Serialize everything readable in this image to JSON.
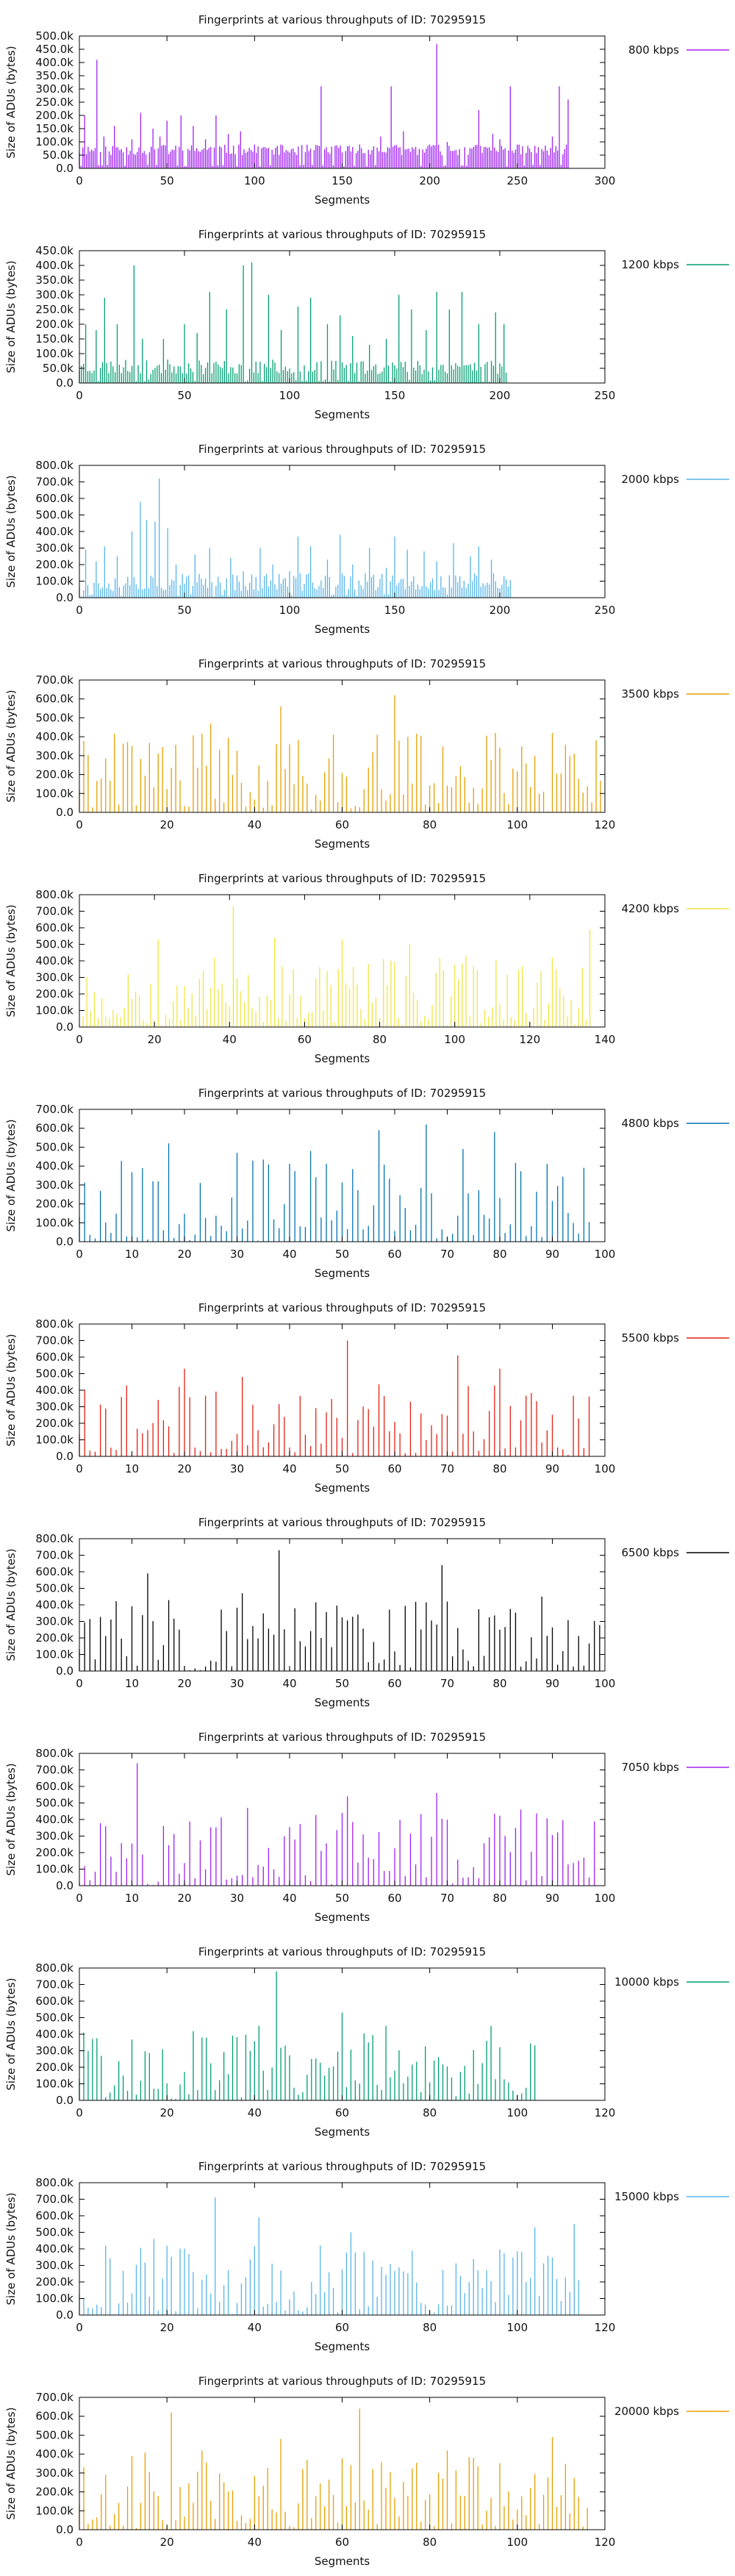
{
  "ylabel": "Size of ADUs (bytes)",
  "xlabel": "Segments",
  "chart_data": [
    {
      "type": "bar",
      "title": "Fingerprints at various throughputs of ID: 70295915",
      "legend": "800 kbps",
      "color": "#a020f0",
      "xlim": [
        0,
        300
      ],
      "ylim": [
        0,
        500000
      ],
      "xticks": [
        "0",
        "50",
        "100",
        "150",
        "200",
        "250",
        "300"
      ],
      "yticks": [
        "0.0",
        "50.0k",
        "100.0k",
        "150.0k",
        "200.0k",
        "250.0k",
        "300.0k",
        "350.0k",
        "400.0k",
        "450.0k",
        "500.0k"
      ],
      "count": 280,
      "peaks": [
        [
          3,
          200000
        ],
        [
          10,
          410000
        ],
        [
          14,
          120000
        ],
        [
          20,
          160000
        ],
        [
          30,
          110000
        ],
        [
          35,
          210000
        ],
        [
          42,
          150000
        ],
        [
          46,
          120000
        ],
        [
          50,
          180000
        ],
        [
          58,
          200000
        ],
        [
          65,
          160000
        ],
        [
          72,
          110000
        ],
        [
          78,
          200000
        ],
        [
          85,
          130000
        ],
        [
          92,
          140000
        ],
        [
          100,
          90000
        ],
        [
          105,
          80000
        ],
        [
          110,
          70000
        ],
        [
          120,
          60000
        ],
        [
          138,
          310000
        ],
        [
          150,
          60000
        ],
        [
          160,
          90000
        ],
        [
          165,
          70000
        ],
        [
          172,
          120000
        ],
        [
          178,
          310000
        ],
        [
          185,
          140000
        ],
        [
          190,
          80000
        ],
        [
          200,
          90000
        ],
        [
          204,
          470000
        ],
        [
          210,
          100000
        ],
        [
          220,
          80000
        ],
        [
          228,
          220000
        ],
        [
          236,
          130000
        ],
        [
          240,
          110000
        ],
        [
          246,
          310000
        ],
        [
          250,
          90000
        ],
        [
          262,
          80000
        ],
        [
          270,
          120000
        ],
        [
          274,
          310000
        ],
        [
          279,
          260000
        ]
      ],
      "base": [
        50000,
        90000
      ],
      "seed": 11
    },
    {
      "type": "bar",
      "title": "Fingerprints at various throughputs of ID: 70295915",
      "legend": "1200 kbps",
      "color": "#009e73",
      "xlim": [
        0,
        250
      ],
      "ylim": [
        0,
        450000
      ],
      "xticks": [
        "0",
        "50",
        "100",
        "150",
        "200",
        "250"
      ],
      "yticks": [
        "0.0",
        "50.0k",
        "100.0k",
        "150.0k",
        "200.0k",
        "250.0k",
        "300.0k",
        "350.0k",
        "400.0k",
        "450.0k"
      ],
      "count": 204,
      "peaks": [
        [
          3,
          200000
        ],
        [
          8,
          180000
        ],
        [
          12,
          290000
        ],
        [
          18,
          200000
        ],
        [
          26,
          400000
        ],
        [
          30,
          150000
        ],
        [
          40,
          150000
        ],
        [
          50,
          200000
        ],
        [
          56,
          170000
        ],
        [
          62,
          310000
        ],
        [
          70,
          250000
        ],
        [
          78,
          400000
        ],
        [
          82,
          410000
        ],
        [
          90,
          300000
        ],
        [
          96,
          180000
        ],
        [
          104,
          260000
        ],
        [
          110,
          290000
        ],
        [
          118,
          200000
        ],
        [
          124,
          230000
        ],
        [
          130,
          160000
        ],
        [
          138,
          130000
        ],
        [
          146,
          150000
        ],
        [
          152,
          300000
        ],
        [
          158,
          250000
        ],
        [
          165,
          180000
        ],
        [
          170,
          310000
        ],
        [
          176,
          250000
        ],
        [
          182,
          310000
        ],
        [
          190,
          200000
        ],
        [
          198,
          240000
        ],
        [
          202,
          200000
        ]
      ],
      "base": [
        30000,
        80000
      ],
      "seed": 23
    },
    {
      "type": "bar",
      "title": "Fingerprints at various throughputs of ID: 70295915",
      "legend": "2000 kbps",
      "color": "#56b4e9",
      "xlim": [
        0,
        250
      ],
      "ylim": [
        0,
        800000
      ],
      "xticks": [
        "0",
        "50",
        "100",
        "150",
        "200",
        "250"
      ],
      "yticks": [
        "0.0",
        "100.0k",
        "200.0k",
        "300.0k",
        "400.0k",
        "500.0k",
        "600.0k",
        "700.0k",
        "800.0k"
      ],
      "count": 206,
      "peaks": [
        [
          3,
          290000
        ],
        [
          8,
          220000
        ],
        [
          12,
          310000
        ],
        [
          18,
          250000
        ],
        [
          25,
          400000
        ],
        [
          29,
          580000
        ],
        [
          32,
          470000
        ],
        [
          36,
          460000
        ],
        [
          38,
          720000
        ],
        [
          42,
          420000
        ],
        [
          46,
          200000
        ],
        [
          55,
          260000
        ],
        [
          62,
          300000
        ],
        [
          72,
          240000
        ],
        [
          78,
          160000
        ],
        [
          86,
          300000
        ],
        [
          92,
          200000
        ],
        [
          100,
          160000
        ],
        [
          104,
          370000
        ],
        [
          110,
          310000
        ],
        [
          118,
          230000
        ],
        [
          124,
          380000
        ],
        [
          130,
          200000
        ],
        [
          138,
          300000
        ],
        [
          146,
          180000
        ],
        [
          150,
          370000
        ],
        [
          156,
          290000
        ],
        [
          164,
          280000
        ],
        [
          170,
          220000
        ],
        [
          178,
          330000
        ],
        [
          186,
          250000
        ],
        [
          190,
          310000
        ],
        [
          196,
          230000
        ],
        [
          202,
          130000
        ]
      ],
      "base": [
        40000,
        150000
      ],
      "seed": 37
    },
    {
      "type": "bar",
      "title": "Fingerprints at various throughputs of ID: 70295915",
      "legend": "3500 kbps",
      "color": "#e69f00",
      "xlim": [
        0,
        120
      ],
      "ylim": [
        0,
        700000
      ],
      "xticks": [
        "0",
        "20",
        "40",
        "60",
        "80",
        "100",
        "120"
      ],
      "yticks": [
        "0.0",
        "100.0k",
        "200.0k",
        "300.0k",
        "400.0k",
        "500.0k",
        "600.0k",
        "700.0k"
      ],
      "count": 120,
      "peaks": [
        [
          30,
          470000
        ],
        [
          46,
          560000
        ],
        [
          72,
          620000
        ],
        [
          95,
          420000
        ],
        [
          108,
          420000
        ]
      ],
      "base": [
        20000,
        420000
      ],
      "seed": 41
    },
    {
      "type": "bar",
      "title": "Fingerprints at various throughputs of ID: 70295915",
      "legend": "4200 kbps",
      "color": "#f0e442",
      "xlim": [
        0,
        140
      ],
      "ylim": [
        0,
        800000
      ],
      "xticks": [
        "0",
        "20",
        "40",
        "60",
        "80",
        "100",
        "120",
        "140"
      ],
      "yticks": [
        "0.0",
        "100.0k",
        "200.0k",
        "300.0k",
        "400.0k",
        "500.0k",
        "600.0k",
        "700.0k",
        "800.0k"
      ],
      "count": 137,
      "peaks": [
        [
          21,
          530000
        ],
        [
          41,
          730000
        ],
        [
          52,
          540000
        ],
        [
          70,
          530000
        ],
        [
          88,
          500000
        ],
        [
          103,
          430000
        ],
        [
          136,
          590000
        ]
      ],
      "base": [
        20000,
        420000
      ],
      "seed": 53
    },
    {
      "type": "bar",
      "title": "Fingerprints at various throughputs of ID: 70295915",
      "legend": "4800 kbps",
      "color": "#0072b2",
      "xlim": [
        0,
        100
      ],
      "ylim": [
        0,
        700000
      ],
      "xticks": [
        "0",
        "10",
        "20",
        "30",
        "40",
        "50",
        "60",
        "70",
        "80",
        "90",
        "100"
      ],
      "yticks": [
        "0.0",
        "100.0k",
        "200.0k",
        "300.0k",
        "400.0k",
        "500.0k",
        "600.0k",
        "700.0k"
      ],
      "count": 98,
      "peaks": [
        [
          17,
          520000
        ],
        [
          30,
          470000
        ],
        [
          44,
          480000
        ],
        [
          57,
          590000
        ],
        [
          66,
          620000
        ],
        [
          73,
          490000
        ],
        [
          79,
          580000
        ]
      ],
      "base": [
        20000,
        440000
      ],
      "seed": 67
    },
    {
      "type": "bar",
      "title": "Fingerprints at various throughputs of ID: 70295915",
      "legend": "5500 kbps",
      "color": "#e51e10",
      "xlim": [
        0,
        100
      ],
      "ylim": [
        0,
        800000
      ],
      "xticks": [
        "0",
        "10",
        "20",
        "30",
        "40",
        "50",
        "60",
        "70",
        "80",
        "90",
        "100"
      ],
      "yticks": [
        "0.0",
        "100.0k",
        "200.0k",
        "300.0k",
        "400.0k",
        "500.0k",
        "600.0k",
        "700.0k",
        "800.0k"
      ],
      "count": 98,
      "peaks": [
        [
          20,
          530000
        ],
        [
          31,
          480000
        ],
        [
          51,
          700000
        ],
        [
          72,
          610000
        ],
        [
          80,
          530000
        ]
      ],
      "base": [
        20000,
        440000
      ],
      "seed": 79
    },
    {
      "type": "bar",
      "title": "Fingerprints at various throughputs of ID: 70295915",
      "legend": "6500 kbps",
      "color": "#000000",
      "xlim": [
        0,
        100
      ],
      "ylim": [
        0,
        800000
      ],
      "xticks": [
        "0",
        "10",
        "20",
        "30",
        "40",
        "50",
        "60",
        "70",
        "80",
        "90",
        "100"
      ],
      "yticks": [
        "0.0",
        "100.0k",
        "200.0k",
        "300.0k",
        "400.0k",
        "500.0k",
        "600.0k",
        "700.0k",
        "800.0k"
      ],
      "count": 100,
      "peaks": [
        [
          13,
          590000
        ],
        [
          31,
          470000
        ],
        [
          38,
          730000
        ],
        [
          69,
          640000
        ],
        [
          88,
          450000
        ]
      ],
      "base": [
        20000,
        440000
      ],
      "seed": 83
    },
    {
      "type": "bar",
      "title": "Fingerprints at various throughputs of ID: 70295915",
      "legend": "7050 kbps",
      "color": "#a020f0",
      "xlim": [
        0,
        100
      ],
      "ylim": [
        0,
        800000
      ],
      "xticks": [
        "0",
        "10",
        "20",
        "30",
        "40",
        "50",
        "60",
        "70",
        "80",
        "90",
        "100"
      ],
      "yticks": [
        "0.0",
        "100.0k",
        "200.0k",
        "300.0k",
        "400.0k",
        "500.0k",
        "600.0k",
        "700.0k",
        "800.0k"
      ],
      "count": 99,
      "peaks": [
        [
          11,
          740000
        ],
        [
          32,
          470000
        ],
        [
          51,
          540000
        ],
        [
          68,
          560000
        ],
        [
          84,
          460000
        ],
        [
          99,
          600000
        ]
      ],
      "base": [
        20000,
        440000
      ],
      "seed": 97
    },
    {
      "type": "bar",
      "title": "Fingerprints at various throughputs of ID: 70295915",
      "legend": "10000 kbps",
      "color": "#009e73",
      "xlim": [
        0,
        120
      ],
      "ylim": [
        0,
        800000
      ],
      "xticks": [
        "0",
        "20",
        "40",
        "60",
        "80",
        "100",
        "120"
      ],
      "yticks": [
        "0.0",
        "100.0k",
        "200.0k",
        "300.0k",
        "400.0k",
        "500.0k",
        "600.0k",
        "700.0k",
        "800.0k"
      ],
      "count": 105,
      "peaks": [
        [
          41,
          450000
        ],
        [
          45,
          780000
        ],
        [
          60,
          530000
        ],
        [
          70,
          450000
        ],
        [
          94,
          450000
        ]
      ],
      "base": [
        20000,
        420000
      ],
      "seed": 101
    },
    {
      "type": "bar",
      "title": "Fingerprints at various throughputs of ID: 70295915",
      "legend": "15000 kbps",
      "color": "#56b4e9",
      "xlim": [
        0,
        120
      ],
      "ylim": [
        0,
        800000
      ],
      "xticks": [
        "0",
        "20",
        "40",
        "60",
        "80",
        "100",
        "120"
      ],
      "yticks": [
        "0.0",
        "100.0k",
        "200.0k",
        "300.0k",
        "400.0k",
        "500.0k",
        "600.0k",
        "700.0k",
        "800.0k"
      ],
      "count": 115,
      "peaks": [
        [
          17,
          460000
        ],
        [
          31,
          710000
        ],
        [
          41,
          590000
        ],
        [
          62,
          500000
        ],
        [
          104,
          530000
        ],
        [
          113,
          550000
        ]
      ],
      "base": [
        20000,
        420000
      ],
      "seed": 113
    },
    {
      "type": "bar",
      "title": "Fingerprints at various throughputs of ID: 70295915",
      "legend": "20000 kbps",
      "color": "#e69f00",
      "xlim": [
        0,
        120
      ],
      "ylim": [
        0,
        700000
      ],
      "xticks": [
        "0",
        "20",
        "40",
        "60",
        "80",
        "100",
        "120"
      ],
      "yticks": [
        "0.0",
        "100.0k",
        "200.0k",
        "300.0k",
        "400.0k",
        "500.0k",
        "600.0k",
        "700.0k"
      ],
      "count": 117,
      "peaks": [
        [
          21,
          620000
        ],
        [
          46,
          480000
        ],
        [
          64,
          640000
        ],
        [
          108,
          490000
        ]
      ],
      "base": [
        20000,
        420000
      ],
      "seed": 127
    }
  ]
}
